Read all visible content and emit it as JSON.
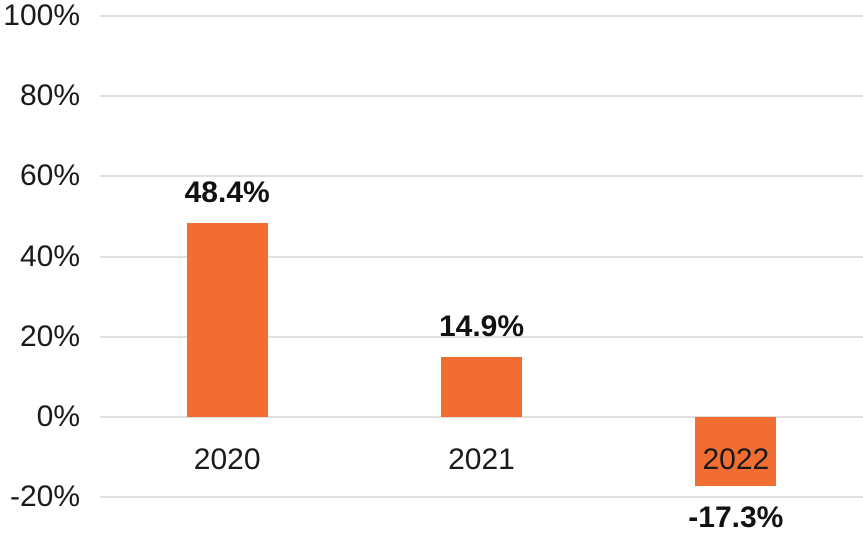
{
  "chart_data": {
    "type": "bar",
    "title": "",
    "xlabel": "",
    "ylabel": "",
    "categories": [
      "2020",
      "2021",
      "2022"
    ],
    "values": [
      48.4,
      14.9,
      -17.3
    ],
    "value_labels": [
      "48.4%",
      "14.9%",
      "-17.3%"
    ],
    "ylim": [
      -20,
      100
    ],
    "yticks": [
      100,
      80,
      60,
      40,
      20,
      0,
      -20
    ],
    "ytick_labels": [
      "100%",
      "80%",
      "60%",
      "40%",
      "20%",
      "0%",
      "-20%"
    ],
    "grid": true,
    "legend": false,
    "colors": {
      "bar": "#F26D31",
      "gridline": "#E0E0E0",
      "tick_text": "#1A1A1A",
      "category_text": "#1A1A1A",
      "value_text": "#111111",
      "background": "#FFFFFF"
    }
  }
}
